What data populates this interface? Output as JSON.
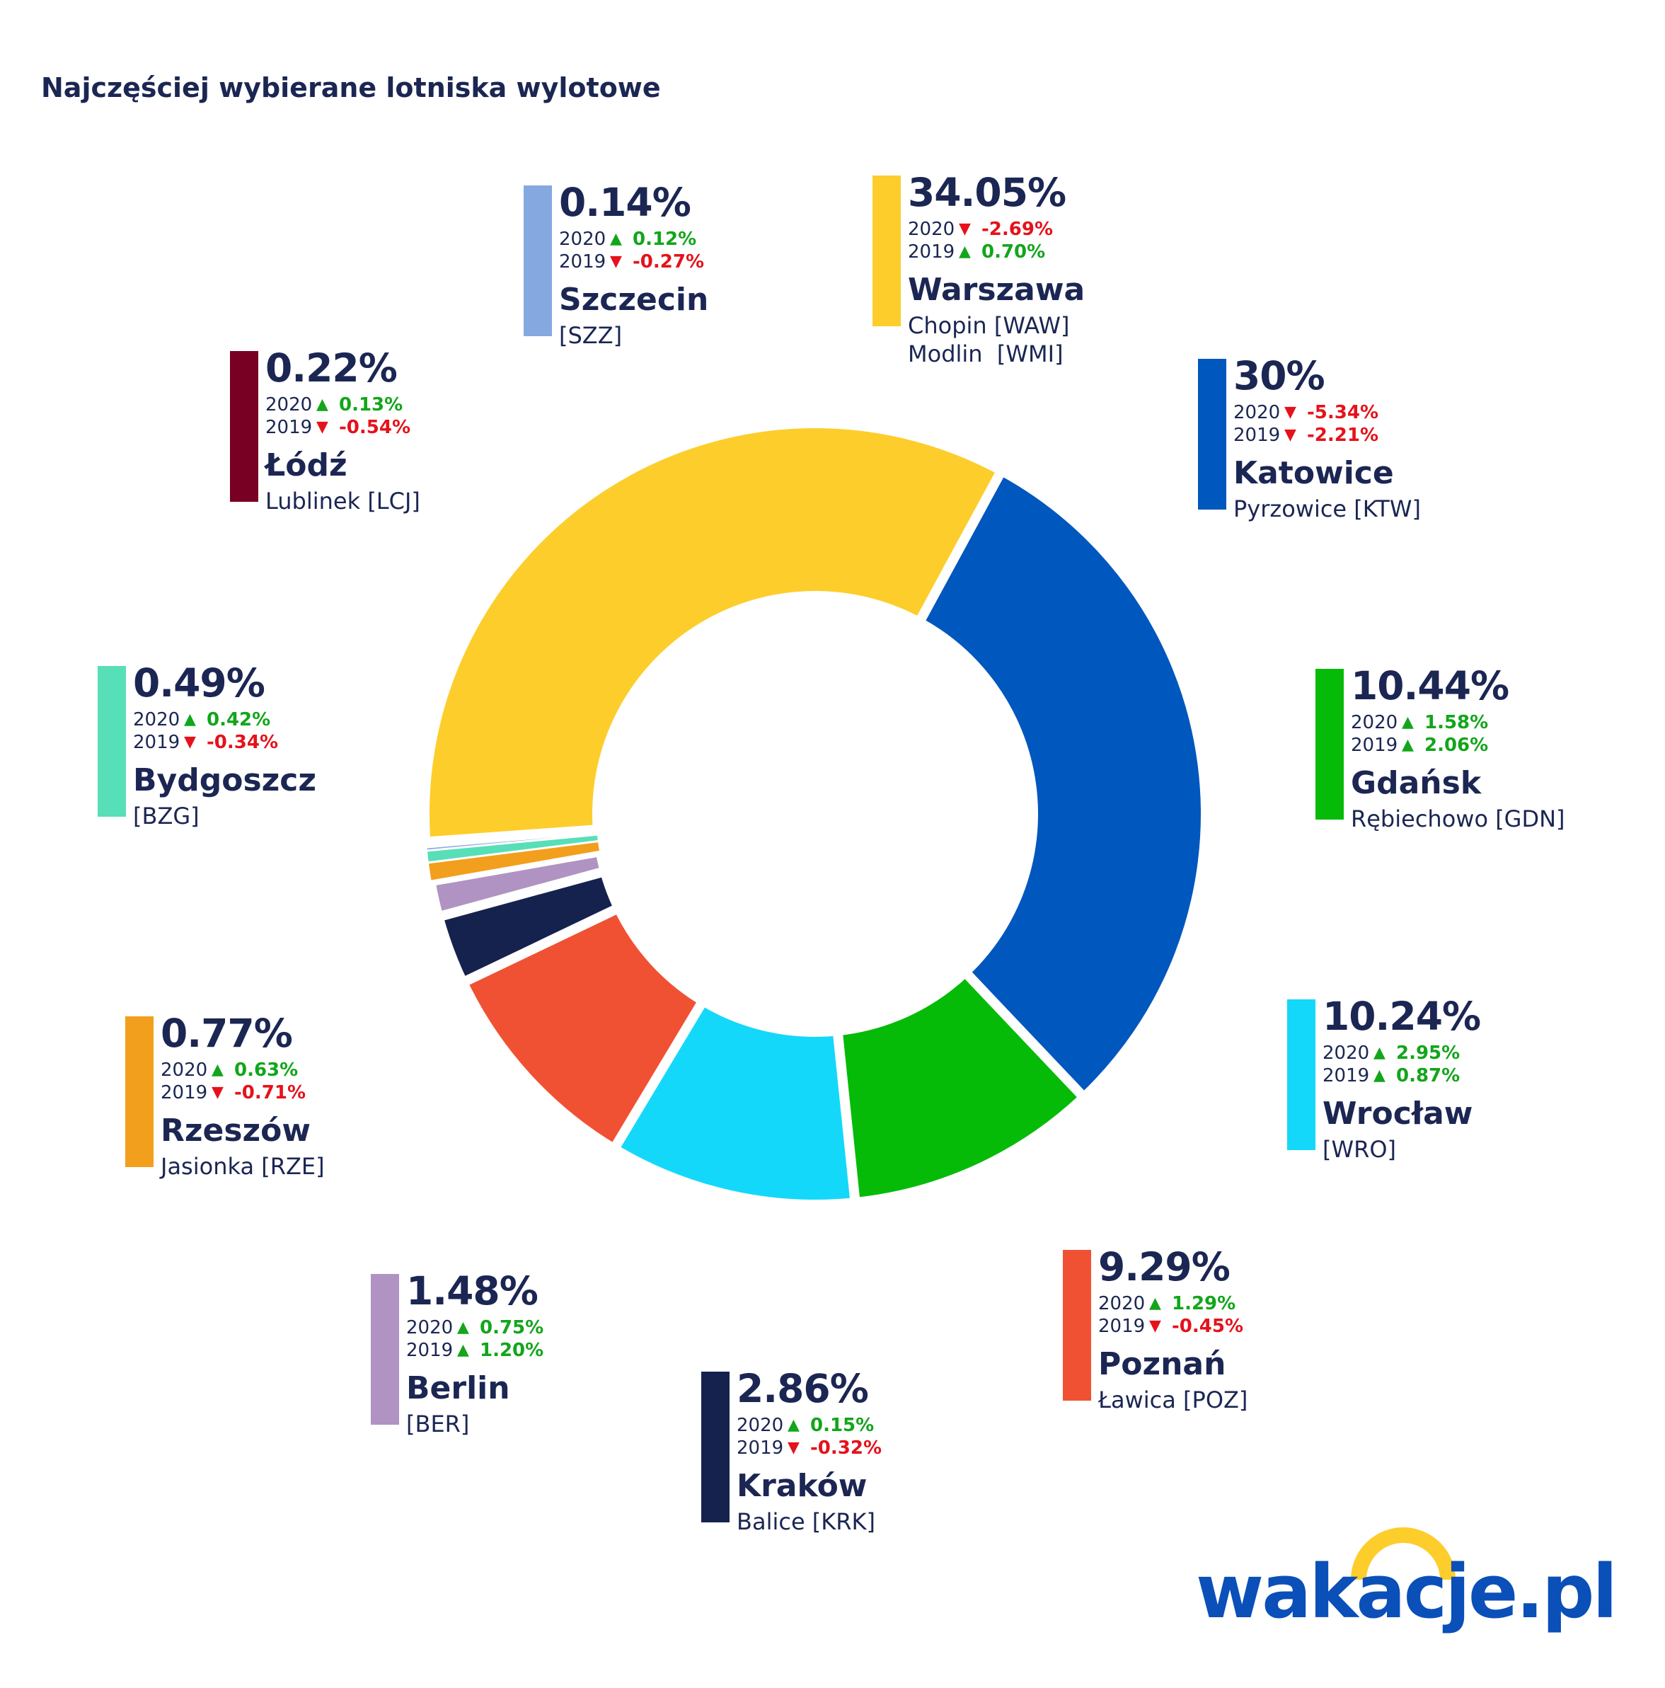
{
  "title": "Najczęściej wybierane lotniska wylotowe",
  "logo": {
    "text": "wakacje.pl",
    "arc_color": "#fdcd2b",
    "text_color": "#0b4fb8"
  },
  "chart_data": {
    "type": "pie",
    "style": "donut",
    "title": "Najczęściej wybierane lotniska wylotowe",
    "slices": [
      {
        "id": "warszawa",
        "city": "Warszawa",
        "airports": [
          "Chopin [WAW]",
          "Modlin  [WMI]"
        ],
        "value": 34.05,
        "pct_label": "34.05%",
        "color": "#fdcd2b",
        "changes": [
          {
            "year": "2020",
            "dir": "down",
            "value": "-2.69%"
          },
          {
            "year": "2019",
            "dir": "up",
            "value": "0.70%"
          }
        ]
      },
      {
        "id": "katowice",
        "city": "Katowice",
        "airports": [
          "Pyrzowice [KTW]"
        ],
        "value": 30,
        "pct_label": "30%",
        "color": "#0057bd",
        "changes": [
          {
            "year": "2020",
            "dir": "down",
            "value": "-5.34%"
          },
          {
            "year": "2019",
            "dir": "down",
            "value": "-2.21%"
          }
        ]
      },
      {
        "id": "gdansk",
        "city": "Gdańsk",
        "airports": [
          "Rębiechowo [GDN]"
        ],
        "value": 10.44,
        "pct_label": "10.44%",
        "color": "#05bb08",
        "changes": [
          {
            "year": "2020",
            "dir": "up",
            "value": "1.58%"
          },
          {
            "year": "2019",
            "dir": "up",
            "value": "2.06%"
          }
        ]
      },
      {
        "id": "wroclaw",
        "city": "Wrocław",
        "airports": [
          "[WRO]"
        ],
        "value": 10.24,
        "pct_label": "10.24%",
        "color": "#14d8fa",
        "changes": [
          {
            "year": "2020",
            "dir": "up",
            "value": "2.95%"
          },
          {
            "year": "2019",
            "dir": "up",
            "value": "0.87%"
          }
        ]
      },
      {
        "id": "poznan",
        "city": "Poznań",
        "airports": [
          "Ławica [POZ]"
        ],
        "value": 9.29,
        "pct_label": "9.29%",
        "color": "#f05133",
        "changes": [
          {
            "year": "2020",
            "dir": "up",
            "value": "1.29%"
          },
          {
            "year": "2019",
            "dir": "down",
            "value": "-0.45%"
          }
        ]
      },
      {
        "id": "krakow",
        "city": "Kraków",
        "airports": [
          "Balice [KRK]"
        ],
        "value": 2.86,
        "pct_label": "2.86%",
        "color": "#15224e",
        "changes": [
          {
            "year": "2020",
            "dir": "up",
            "value": "0.15%"
          },
          {
            "year": "2019",
            "dir": "down",
            "value": "-0.32%"
          }
        ]
      },
      {
        "id": "berlin",
        "city": "Berlin",
        "airports": [
          "[BER]"
        ],
        "value": 1.48,
        "pct_label": "1.48%",
        "color": "#b093c2",
        "changes": [
          {
            "year": "2020",
            "dir": "up",
            "value": "0.75%"
          },
          {
            "year": "2019",
            "dir": "up",
            "value": "1.20%"
          }
        ]
      },
      {
        "id": "rzeszow",
        "city": "Rzeszów",
        "airports": [
          "Jasionka [RZE]"
        ],
        "value": 0.77,
        "pct_label": "0.77%",
        "color": "#f29f1d",
        "changes": [
          {
            "year": "2020",
            "dir": "up",
            "value": "0.63%"
          },
          {
            "year": "2019",
            "dir": "down",
            "value": "-0.71%"
          }
        ]
      },
      {
        "id": "bydgoszcz",
        "city": "Bydgoszcz",
        "airports": [
          "[BZG]"
        ],
        "value": 0.49,
        "pct_label": "0.49%",
        "color": "#57dfb7",
        "changes": [
          {
            "year": "2020",
            "dir": "up",
            "value": "0.42%"
          },
          {
            "year": "2019",
            "dir": "down",
            "value": "-0.34%"
          }
        ]
      },
      {
        "id": "szczecin",
        "city": "Szczecin",
        "airports": [
          "[SZZ]"
        ],
        "value": 0.14,
        "pct_label": "0.14%",
        "color": "#85a8e0",
        "changes": [
          {
            "year": "2020",
            "dir": "up",
            "value": "0.12%"
          },
          {
            "year": "2019",
            "dir": "down",
            "value": "-0.27%"
          }
        ]
      },
      {
        "id": "lodz",
        "city": "Łódź",
        "airports": [
          "Lublinek [LCJ]"
        ],
        "value": 0.22,
        "pct_label": "0.22%",
        "color": "#780022",
        "changes": [
          {
            "year": "2020",
            "dir": "up",
            "value": "0.13%"
          },
          {
            "year": "2019",
            "dir": "down",
            "value": "-0.54%"
          }
        ]
      }
    ]
  }
}
